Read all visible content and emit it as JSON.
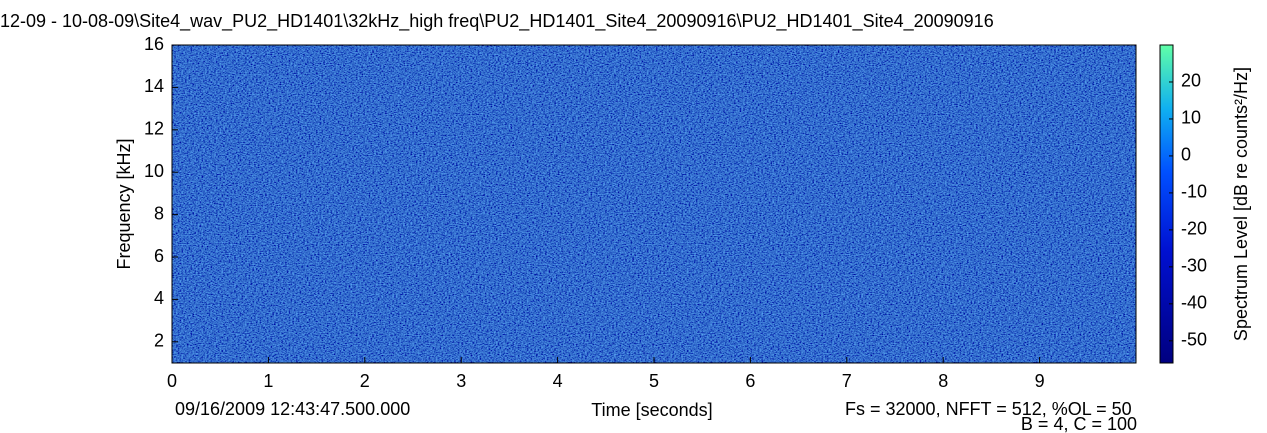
{
  "chart_data": {
    "type": "spectrogram",
    "title": "12-09 - 10-08-09\\Site4_wav_PU2_HD1401\\32kHz_high freq\\PU2_HD1401_Site4_20090916\\PU2_HD1401_Site4_20090916",
    "xlabel": "Time [seconds]",
    "ylabel": "Frequency [kHz]",
    "colorbar_label": "Spectrum Level [dB re counts²/Hz]",
    "annotations": [
      "09/16/2009 12:43:47.500.000",
      "Fs = 32000, NFFT = 512, %OL = 50",
      "B = 4, C = 100"
    ],
    "xlim": [
      0,
      10
    ],
    "xticks": [
      0,
      1,
      2,
      3,
      4,
      5,
      6,
      7,
      8,
      9
    ],
    "ylim": [
      1,
      16
    ],
    "yticks": [
      2,
      4,
      6,
      8,
      10,
      12,
      14,
      16
    ],
    "clim": [
      -56,
      30
    ],
    "cticks": [
      -50,
      -40,
      -30,
      -20,
      -10,
      0,
      10,
      20
    ]
  }
}
